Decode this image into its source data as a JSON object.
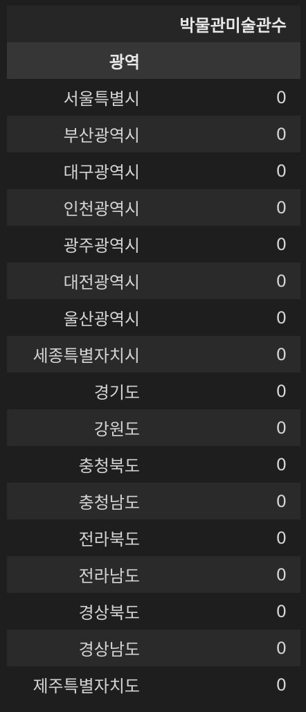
{
  "table": {
    "column_header": "박물관미술관수",
    "index_header": "광역",
    "rows": [
      {
        "region": "서울특별시",
        "value": "0"
      },
      {
        "region": "부산광역시",
        "value": "0"
      },
      {
        "region": "대구광역시",
        "value": "0"
      },
      {
        "region": "인천광역시",
        "value": "0"
      },
      {
        "region": "광주광역시",
        "value": "0"
      },
      {
        "region": "대전광역시",
        "value": "0"
      },
      {
        "region": "울산광역시",
        "value": "0"
      },
      {
        "region": "세종특별자치시",
        "value": "0"
      },
      {
        "region": "경기도",
        "value": "0"
      },
      {
        "region": "강원도",
        "value": "0"
      },
      {
        "region": "충청북도",
        "value": "0"
      },
      {
        "region": "충청남도",
        "value": "0"
      },
      {
        "region": "전라북도",
        "value": "0"
      },
      {
        "region": "전라남도",
        "value": "0"
      },
      {
        "region": "경상북도",
        "value": "0"
      },
      {
        "region": "경상남도",
        "value": "0"
      },
      {
        "region": "제주특별자치도",
        "value": "0"
      }
    ]
  },
  "colors": {
    "background": "#1e1e1e",
    "stripe": "#2a2a2a",
    "index_header_bg": "#363636",
    "text": "#d4d4d4"
  }
}
